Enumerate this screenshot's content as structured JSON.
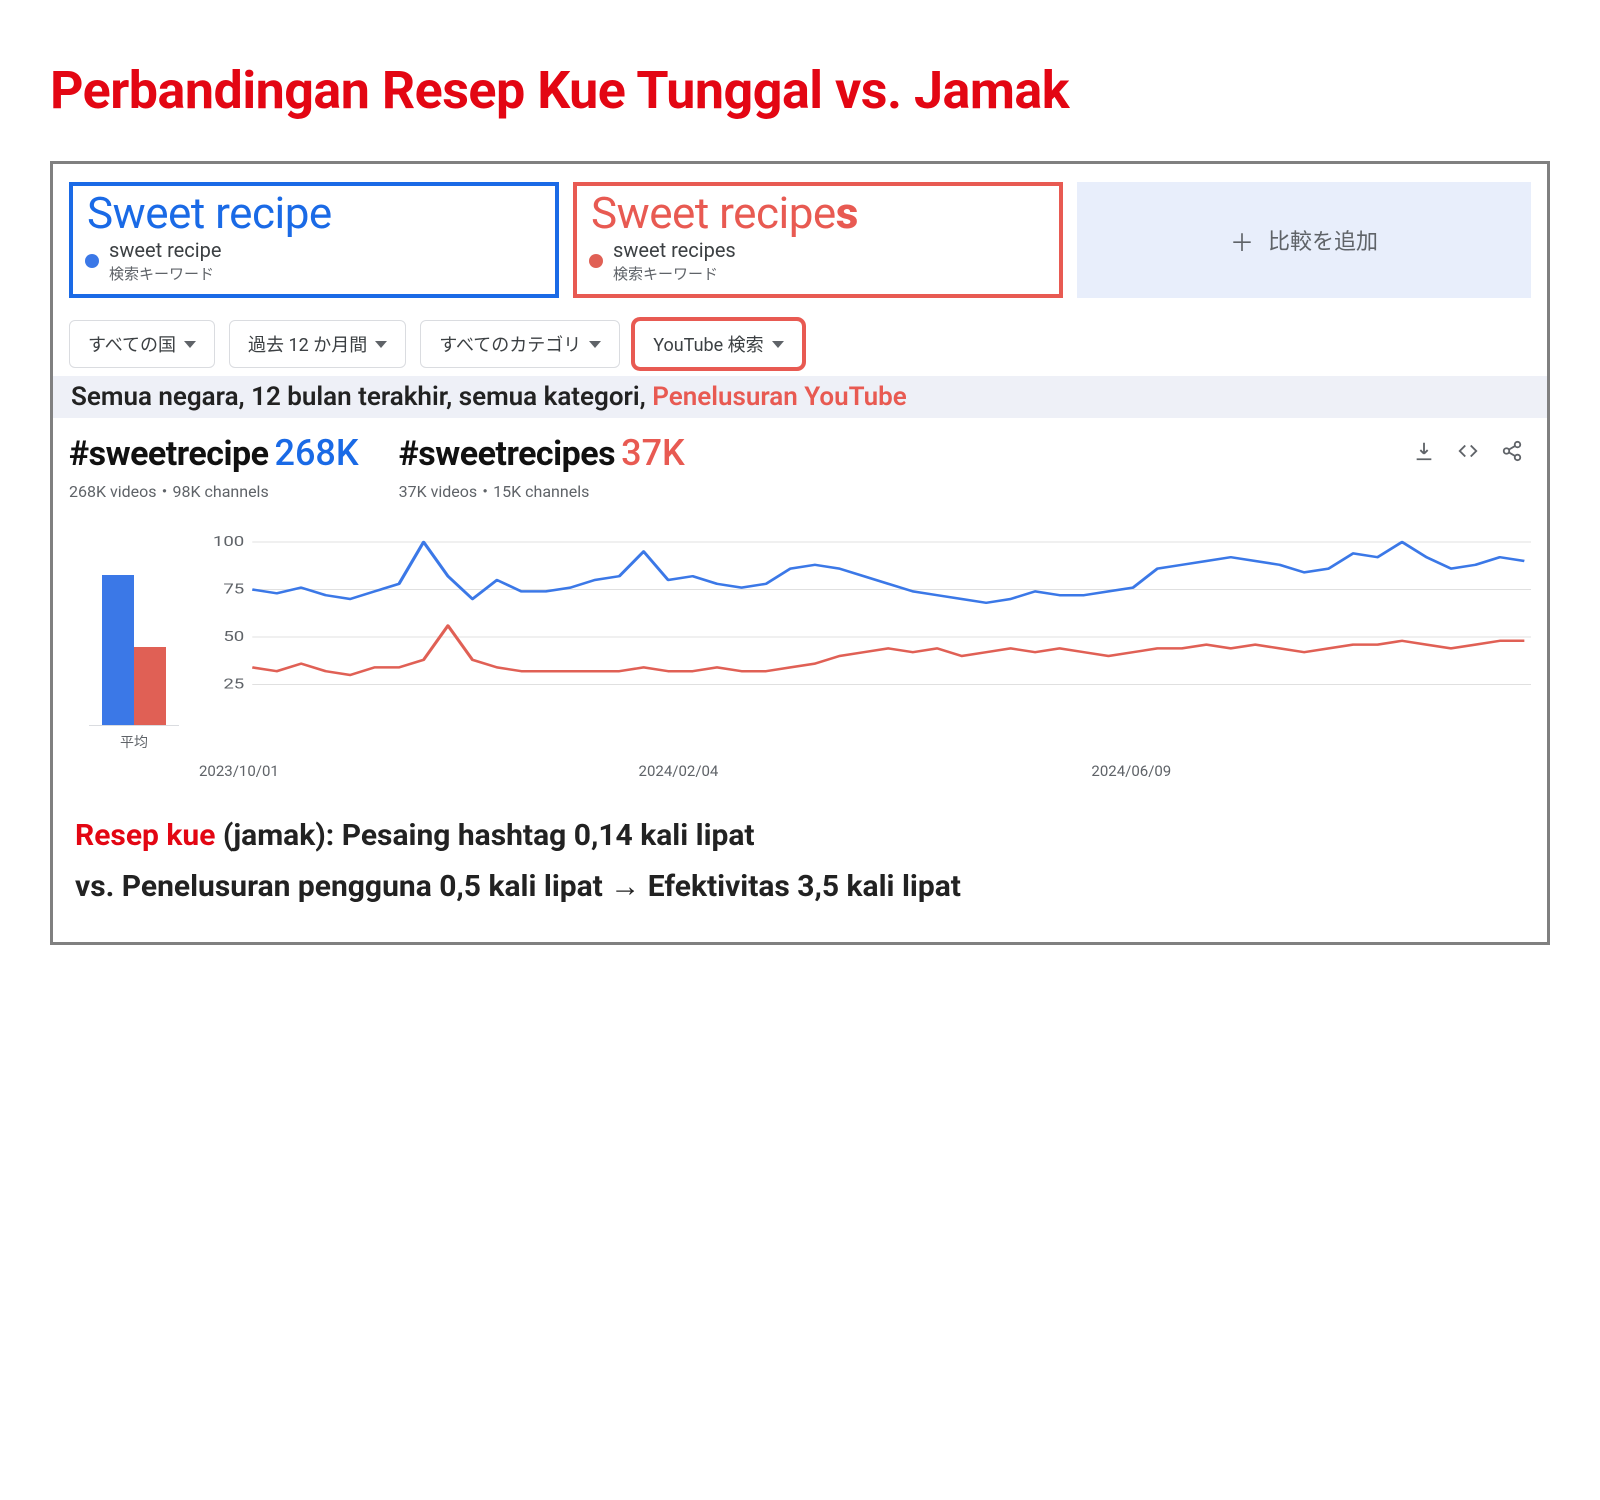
{
  "title": "Perbandingan Resep Kue Tunggal vs. Jamak",
  "compare": {
    "a": {
      "big": "Sweet recipe",
      "term": "sweet recipe",
      "type": "検索キーワード",
      "color": "#1a6ae6"
    },
    "b": {
      "big_prefix": "Sweet recipe",
      "big_suffix": "s",
      "term": "sweet recipes",
      "type": "検索キーワード",
      "color": "#e85a52"
    },
    "add_label": "比較を追加"
  },
  "filters": {
    "country": "すべての国",
    "period": "過去 12 か月間",
    "category": "すべてのカテゴリ",
    "search_type": "YouTube 検索"
  },
  "filter_caption": {
    "plain": "Semua negara, 12 bulan terakhir, semua kategori, ",
    "highlight": "Penelusuran YouTube"
  },
  "hashtags": {
    "a": {
      "tag": "#sweetrecipe",
      "count": "268K",
      "sub": "268K videos・98K channels"
    },
    "b": {
      "tag": "#sweetrecipes",
      "count": "37K",
      "sub": "37K videos・15K channels"
    }
  },
  "chart": {
    "avg_label": "平均",
    "avg_bar_a": 150,
    "avg_bar_b": 78,
    "y_ticks": [
      "100",
      "75",
      "50",
      "25"
    ],
    "y_positions": [
      20,
      70,
      120,
      170
    ],
    "grid_color": "#e0e0e0",
    "line_a_color": "#3b78e7",
    "line_b_color": "#e06055",
    "series_a": [
      75,
      73,
      76,
      72,
      70,
      74,
      78,
      100,
      82,
      70,
      80,
      74,
      74,
      76,
      80,
      82,
      95,
      80,
      82,
      78,
      76,
      78,
      86,
      88,
      86,
      82,
      78,
      74,
      72,
      70,
      68,
      70,
      74,
      72,
      72,
      74,
      76,
      86,
      88,
      90,
      92,
      90,
      88,
      84,
      86,
      94,
      92,
      100,
      92,
      86,
      88,
      92,
      90
    ],
    "series_b": [
      34,
      32,
      36,
      32,
      30,
      34,
      34,
      38,
      56,
      38,
      34,
      32,
      32,
      32,
      32,
      32,
      34,
      32,
      32,
      34,
      32,
      32,
      34,
      36,
      40,
      42,
      44,
      42,
      44,
      40,
      42,
      44,
      42,
      44,
      42,
      40,
      42,
      44,
      44,
      46,
      44,
      46,
      44,
      42,
      44,
      46,
      46,
      48,
      46,
      44,
      46,
      48,
      48
    ],
    "x_labels": [
      "2023/10/01",
      "2024/02/04",
      "2024/06/09"
    ]
  },
  "summary": {
    "line1_red": "Resep kue",
    "line1_rest": " (jamak): Pesaing hashtag 0,14 kali lipat",
    "line2": "vs. Penelusuran pengguna 0,5 kali lipat → Efektivitas 3,5 kali lipat"
  }
}
